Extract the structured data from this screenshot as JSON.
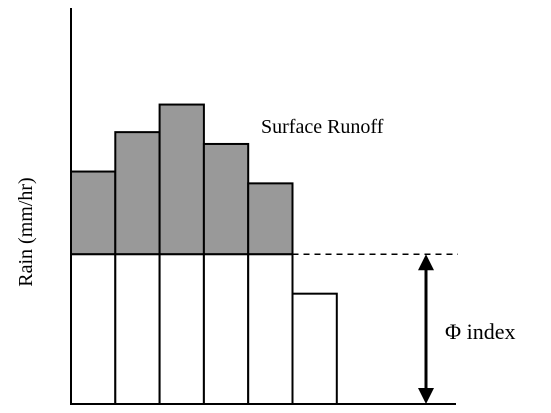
{
  "diagram": {
    "ylabel": "Rain (mm/hr)",
    "runoff_label": "Surface Runoff",
    "phi_label": "Φ index",
    "phi_index": 3.8,
    "rain_intensities": [
      5.9,
      6.9,
      7.6,
      6.6,
      5.6,
      2.8
    ],
    "colors": {
      "runoff_fill": "#999999",
      "infiltration_fill": "#ffffff",
      "stroke": "#000000"
    }
  }
}
